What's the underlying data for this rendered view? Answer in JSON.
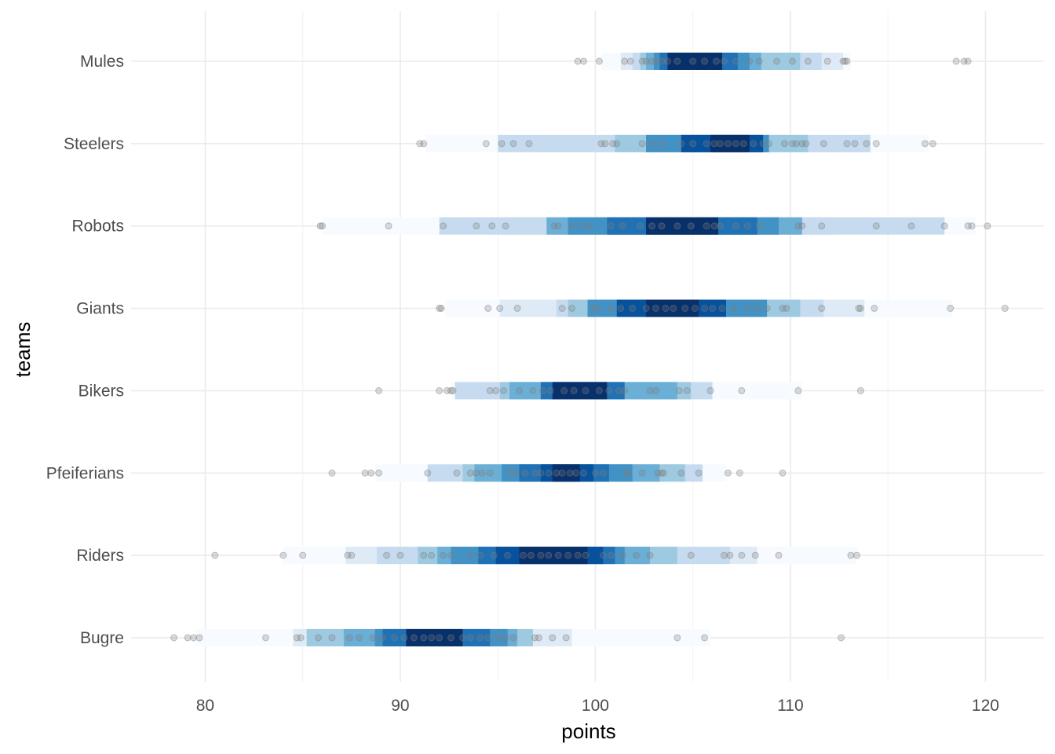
{
  "chart_data": {
    "type": "scatter",
    "subtype": "strip plot with density bands",
    "title": "",
    "xlabel": "points",
    "ylabel": "teams",
    "xlim": [
      76.2,
      123.0
    ],
    "x_ticks": [
      80,
      90,
      100,
      110,
      120
    ],
    "x_tick_labels": [
      "80",
      "90",
      "100",
      "110",
      "120"
    ],
    "grid": true,
    "legend": "none",
    "colors": {
      "density_scale": [
        "#f7fbff",
        "#deebf7",
        "#c6dbef",
        "#9ecae1",
        "#6baed6",
        "#4292c6",
        "#2171b5",
        "#08519c",
        "#08306b"
      ],
      "point": "#7f7f7f",
      "grid": "#ebebeb",
      "text": "#4d4d4d"
    },
    "categories": [
      "Mules",
      "Steelers",
      "Robots",
      "Giants",
      "Bikers",
      "Pfeiferians",
      "Riders",
      "Bugre"
    ],
    "series": [
      {
        "category": "Mules",
        "bands": [
          [
            100.3,
            113.1,
            0
          ],
          [
            101.3,
            112.7,
            1
          ],
          [
            101.9,
            111.6,
            2
          ],
          [
            102.3,
            110.5,
            3
          ],
          [
            102.6,
            108.5,
            4
          ],
          [
            103.0,
            107.9,
            5
          ],
          [
            103.3,
            107.3,
            6
          ],
          [
            103.7,
            106.5,
            8
          ]
        ],
        "points": [
          99.1,
          99.4,
          100.2,
          101.5,
          101.8,
          102.4,
          102.6,
          102.9,
          103.1,
          103.4,
          103.7,
          104.2,
          105.0,
          105.6,
          106.2,
          106.6,
          107.2,
          107.9,
          108.4,
          109.3,
          110.1,
          110.9,
          111.9,
          112.7,
          112.8,
          112.9,
          118.5,
          118.9,
          119.1
        ]
      },
      {
        "category": "Steelers",
        "bands": [
          [
            91.3,
            117.1,
            0
          ],
          [
            95.0,
            114.1,
            2
          ],
          [
            101.0,
            110.9,
            3
          ],
          [
            102.6,
            108.9,
            5
          ],
          [
            104.4,
            108.6,
            7
          ],
          [
            105.9,
            107.9,
            8
          ]
        ],
        "points": [
          91.0,
          91.2,
          94.4,
          95.2,
          95.8,
          96.6,
          100.3,
          100.5,
          100.9,
          101.1,
          102.4,
          102.9,
          103.4,
          104.4,
          105.0,
          105.7,
          106.1,
          106.4,
          106.8,
          107.2,
          107.6,
          108.1,
          108.6,
          108.9,
          109.7,
          110.1,
          110.3,
          110.6,
          110.8,
          111.7,
          112.9,
          113.3,
          113.9,
          114.4,
          116.9,
          117.3
        ]
      },
      {
        "category": "Robots",
        "bands": [
          [
            86.0,
            119.5,
            0
          ],
          [
            92.0,
            117.9,
            2
          ],
          [
            94.7,
            112.2,
            2
          ],
          [
            97.5,
            110.6,
            4
          ],
          [
            98.6,
            109.4,
            5
          ],
          [
            100.6,
            108.3,
            6
          ],
          [
            102.6,
            106.3,
            8
          ]
        ],
        "points": [
          85.9,
          86.0,
          89.4,
          92.2,
          93.9,
          94.7,
          95.4,
          97.9,
          98.1,
          98.8,
          99.3,
          99.7,
          100.8,
          101.4,
          102.3,
          102.9,
          103.4,
          104.2,
          104.9,
          105.7,
          106.1,
          106.4,
          107.2,
          107.8,
          108.4,
          110.4,
          110.6,
          111.6,
          114.4,
          116.2,
          117.9,
          119.1,
          119.3,
          120.1
        ]
      },
      {
        "category": "Giants",
        "bands": [
          [
            92.3,
            118.3,
            0
          ],
          [
            95.1,
            113.8,
            1
          ],
          [
            98.0,
            111.7,
            2
          ],
          [
            98.6,
            110.5,
            3
          ],
          [
            99.6,
            108.8,
            5
          ],
          [
            101.1,
            106.7,
            7
          ],
          [
            102.6,
            105.3,
            8
          ]
        ],
        "points": [
          92.0,
          92.1,
          94.5,
          95.1,
          96.0,
          98.3,
          98.8,
          99.9,
          100.1,
          100.8,
          101.3,
          101.9,
          102.6,
          103.1,
          103.6,
          104.0,
          104.6,
          105.1,
          105.6,
          106.0,
          106.5,
          107.1,
          107.8,
          108.3,
          108.8,
          109.6,
          109.8,
          111.6,
          113.5,
          113.6,
          114.3,
          118.2,
          121.0
        ]
      },
      {
        "category": "Bikers",
        "bands": [
          [
            92.6,
            110.6,
            0
          ],
          [
            92.8,
            106.0,
            2
          ],
          [
            95.1,
            104.9,
            3
          ],
          [
            95.6,
            104.2,
            4
          ],
          [
            97.2,
            101.5,
            6
          ],
          [
            97.8,
            100.6,
            8
          ]
        ],
        "points": [
          88.9,
          92.0,
          92.4,
          92.6,
          92.7,
          94.6,
          94.9,
          95.3,
          96.1,
          96.8,
          97.3,
          97.7,
          98.4,
          98.9,
          99.5,
          100.2,
          100.7,
          101.2,
          101.5,
          102.8,
          103.1,
          104.3,
          104.7,
          105.9,
          107.5,
          110.4,
          113.6
        ]
      },
      {
        "category": "Pfeiferians",
        "bands": [
          [
            88.7,
            106.7,
            0
          ],
          [
            91.4,
            105.5,
            2
          ],
          [
            93.2,
            104.6,
            3
          ],
          [
            93.8,
            103.3,
            4
          ],
          [
            95.2,
            101.9,
            5
          ],
          [
            96.1,
            100.7,
            6
          ],
          [
            97.2,
            99.9,
            7
          ],
          [
            97.8,
            99.2,
            8
          ]
        ],
        "points": [
          86.5,
          88.2,
          88.5,
          88.9,
          91.4,
          92.9,
          93.6,
          93.9,
          94.2,
          94.6,
          95.6,
          95.9,
          96.4,
          96.9,
          97.2,
          97.6,
          98.0,
          98.3,
          98.7,
          99.0,
          99.4,
          100.0,
          100.4,
          101.6,
          101.7,
          102.4,
          103.2,
          103.4,
          103.5,
          104.4,
          105.3,
          106.8,
          107.4,
          109.6
        ]
      },
      {
        "category": "Riders",
        "bands": [
          [
            84.0,
            113.4,
            0
          ],
          [
            87.2,
            108.3,
            1
          ],
          [
            88.8,
            106.9,
            2
          ],
          [
            90.9,
            104.2,
            3
          ],
          [
            91.9,
            102.8,
            4
          ],
          [
            92.6,
            101.5,
            5
          ],
          [
            94.0,
            101.0,
            6
          ],
          [
            94.9,
            100.4,
            7
          ],
          [
            96.1,
            99.6,
            8
          ]
        ],
        "points": [
          80.5,
          84.0,
          85.0,
          87.3,
          87.5,
          89.3,
          90.0,
          91.2,
          91.6,
          92.2,
          92.6,
          93.6,
          94.1,
          94.8,
          95.5,
          96.3,
          96.7,
          97.2,
          97.6,
          98.1,
          98.6,
          99.1,
          99.5,
          100.4,
          100.8,
          101.4,
          102.1,
          102.8,
          104.9,
          106.6,
          106.9,
          107.5,
          108.2,
          109.4,
          113.1,
          113.4
        ]
      },
      {
        "category": "Bugre",
        "bands": [
          [
            79.5,
            105.9,
            0
          ],
          [
            84.5,
            98.8,
            1
          ],
          [
            85.2,
            96.8,
            3
          ],
          [
            87.1,
            96.0,
            4
          ],
          [
            88.7,
            95.5,
            5
          ],
          [
            89.1,
            94.6,
            6
          ],
          [
            90.3,
            93.2,
            8
          ]
        ],
        "points": [
          78.4,
          79.1,
          79.4,
          79.7,
          83.1,
          84.7,
          84.9,
          85.8,
          86.5,
          87.4,
          87.9,
          88.6,
          89.1,
          89.7,
          90.2,
          90.7,
          91.2,
          91.6,
          92.0,
          92.6,
          93.2,
          93.6,
          94.1,
          94.5,
          95.0,
          95.4,
          95.8,
          96.9,
          97.1,
          97.8,
          98.5,
          104.2,
          105.6,
          112.6
        ]
      }
    ]
  }
}
